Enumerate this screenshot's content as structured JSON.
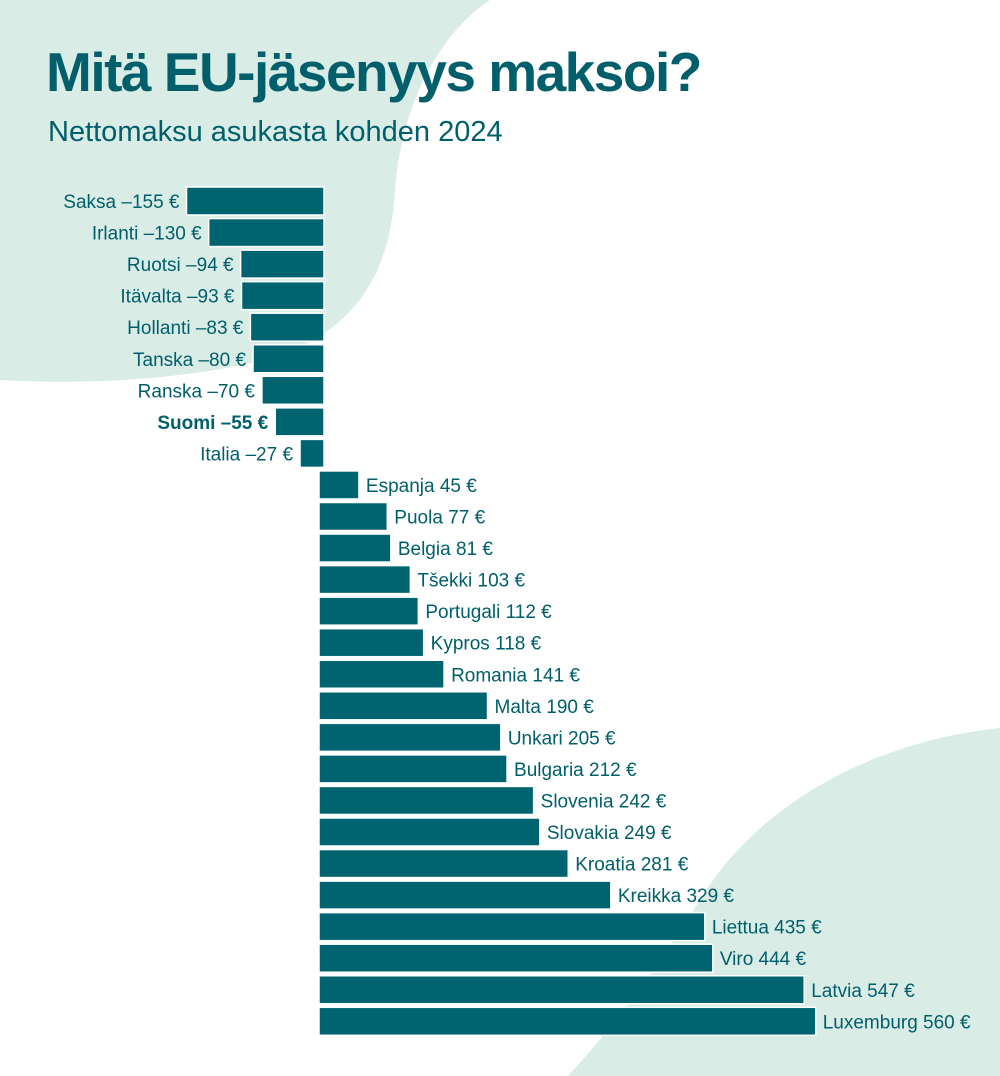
{
  "header": {
    "title": "Mitä EU-jäsenyys maksoi?",
    "subtitle": "Nettomaksu asukasta kohden 2024"
  },
  "colors": {
    "bar": "#006470",
    "text": "#005f6b",
    "background_shape": "#d9ece6"
  },
  "chart_data": {
    "type": "bar",
    "orientation": "horizontal",
    "title": "Mitä EU-jäsenyys maksoi?",
    "subtitle": "Nettomaksu asukasta kohden 2024",
    "unit": "€",
    "highlight": "Suomi",
    "categories": [
      "Saksa",
      "Irlanti",
      "Ruotsi",
      "Itävalta",
      "Hollanti",
      "Tanska",
      "Ranska",
      "Suomi",
      "Italia",
      "Espanja",
      "Puola",
      "Belgia",
      "Tšekki",
      "Portugali",
      "Kypros",
      "Romania",
      "Malta",
      "Unkari",
      "Bulgaria",
      "Slovenia",
      "Slovakia",
      "Kroatia",
      "Kreikka",
      "Liettua",
      "Viro",
      "Latvia",
      "Luxemburg"
    ],
    "values": [
      -155,
      -130,
      -94,
      -93,
      -83,
      -80,
      -70,
      -55,
      -27,
      45,
      77,
      81,
      103,
      112,
      118,
      141,
      190,
      205,
      212,
      242,
      249,
      281,
      329,
      435,
      444,
      547,
      560
    ],
    "labels": [
      "Saksa –155 €",
      "Irlanti –130 €",
      "Ruotsi –94 €",
      "Itävalta –93 €",
      "Hollanti –83 €",
      "Tanska –80 €",
      "Ranska –70 €",
      "Suomi –55 €",
      "Italia –27 €",
      "Espanja 45 €",
      "Puola 77 €",
      "Belgia 81 €",
      "Tšekki 103 €",
      "Portugali 112 €",
      "Kypros 118 €",
      "Romania 141 €",
      "Malta 190 €",
      "Unkari 205 €",
      "Bulgaria 212 €",
      "Slovenia 242 €",
      "Slovakia 249 €",
      "Kroatia 281 €",
      "Kreikka 329 €",
      "Liettua 435 €",
      "Viro 444 €",
      "Latvia 547 €",
      "Luxemburg 560 €"
    ],
    "grid": false,
    "legend": "none"
  }
}
